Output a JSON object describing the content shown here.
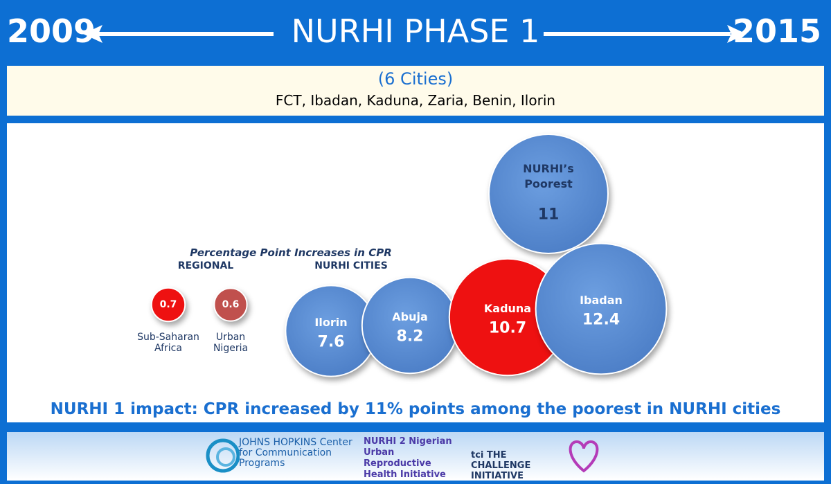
{
  "header": {
    "start": "2009",
    "title": "NURHI PHASE 1",
    "end": "2015",
    "subtitle": "(6 Cities)",
    "cities": "FCT, Ibadan, Kaduna, Zaria, Benin, Ilorin"
  },
  "chart_data": {
    "type": "bubble",
    "title": "Percentage Point Increases in CPR",
    "groups": [
      "REGIONAL",
      "NURHI CITIES"
    ],
    "categories": [
      "Sub-Saharan Africa",
      "Urban Nigeria",
      "Ilorin",
      "Abuja",
      "Kaduna",
      "NURHI’s Poorest",
      "Ibadan"
    ],
    "values": [
      0.7,
      0.6,
      7.6,
      8.2,
      10.7,
      11,
      12.4
    ],
    "colors": [
      "#ee1111",
      "#c0504d",
      "#5b8fd6",
      "#5b8fd6",
      "#ee1111",
      "#5b8fd6",
      "#5b8fd6"
    ]
  },
  "footer": {
    "statement": "NURHI 1 impact: CPR increased by 11% points among the poorest in NURHI cities",
    "logos": [
      "JOHNS HOPKINS Center for Communication Programs",
      "NURHI 2 Nigerian Urban Reproductive Health Initiative",
      "tci THE CHALLENGE INITIATIVE"
    ]
  }
}
